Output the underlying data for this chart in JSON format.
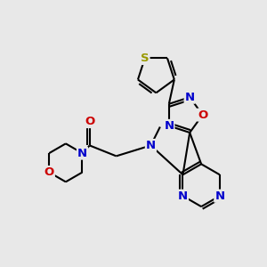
{
  "bg_color": "#e8e8e8",
  "bond_color": "#000000",
  "S_color": "#999900",
  "N_color": "#0000cc",
  "O_color": "#cc0000",
  "bond_width": 1.5,
  "font_size_atom": 9.5,
  "title": "",
  "xlim": [
    0,
    10
  ],
  "ylim": [
    0,
    10
  ],
  "figsize": [
    3.0,
    3.0
  ],
  "dpi": 100
}
